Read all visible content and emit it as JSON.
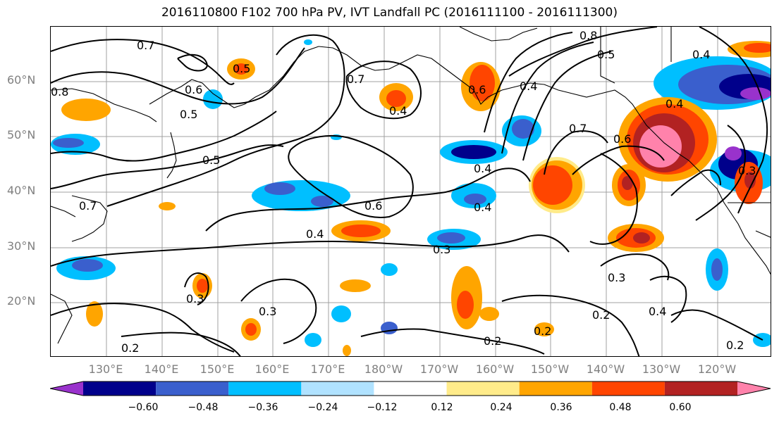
{
  "title": "2016110800 F102 700 hPa PV, IVT Landfall PC (2016111100 - 2016111300)",
  "lat_labels": [
    "60°N",
    "50°N",
    "40°N",
    "30°N",
    "20°N"
  ],
  "lon_labels": [
    "130°E",
    "140°E",
    "150°E",
    "160°E",
    "170°E",
    "180°W",
    "170°W",
    "160°W",
    "150°W",
    "140°W",
    "130°W",
    "120°W"
  ],
  "contour_labels": [
    "0.7",
    "0.5",
    "0.6",
    "0.7",
    "0.4",
    "0.8",
    "0.5",
    "0.5",
    "0.6",
    "0.4",
    "0.7",
    "0.6",
    "0.4",
    "0.4",
    "0.3",
    "0.3",
    "0.3",
    "0.3",
    "0.2",
    "0.2",
    "0.2",
    "0.2",
    "0.2",
    "0.4",
    "0.4",
    "0.4",
    "0.5",
    "0.6",
    "0.8",
    "0.7",
    "0.3",
    "0.4"
  ],
  "colorbar": {
    "ticks": [
      "−0.60",
      "−0.48",
      "−0.36",
      "−0.24",
      "−0.12",
      "0.12",
      "0.24",
      "0.36",
      "0.48",
      "0.60"
    ],
    "colors": [
      "#9932cc",
      "#00008b",
      "#3a5fcd",
      "#00bfff",
      "#b0e2ff",
      "#ffffff",
      "#ffeb8a",
      "#ffa500",
      "#ff4500",
      "#b22222",
      "#ff82ab"
    ]
  }
}
